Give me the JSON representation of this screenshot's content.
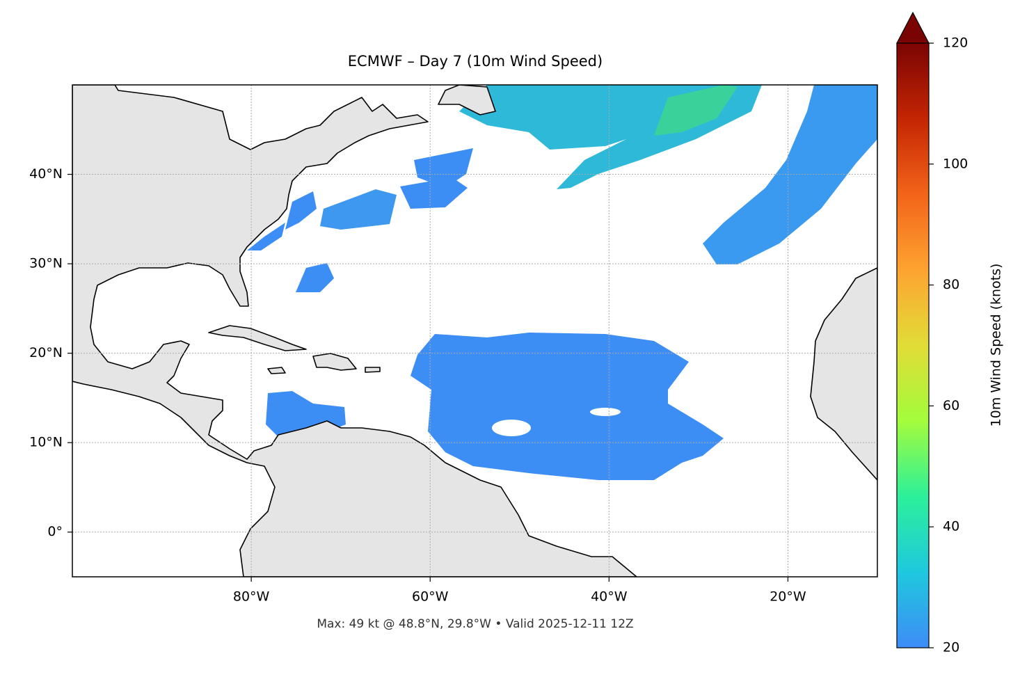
{
  "map": {
    "title": "ECMWF – Day 7 (10m Wind Speed)",
    "footer": "Max: 49 kt @ 48.8°N, 29.8°W • Valid 2025-12-11 12Z",
    "lonlim": [
      -100,
      -10
    ],
    "latlim": [
      -5,
      50
    ],
    "lon_ticks": [
      {
        "value": -80,
        "label": "80°W"
      },
      {
        "value": -60,
        "label": "60°W"
      },
      {
        "value": -40,
        "label": "40°W"
      },
      {
        "value": -20,
        "label": "20°W"
      }
    ],
    "lat_ticks": [
      {
        "value": 40,
        "label": "40°N"
      },
      {
        "value": 30,
        "label": "30°N"
      },
      {
        "value": 20,
        "label": "20°N"
      },
      {
        "value": 10,
        "label": "10°N"
      },
      {
        "value": 0,
        "label": "0°"
      }
    ],
    "grid": true,
    "colorbar": {
      "label": "10m Wind Speed (knots)",
      "lim": [
        20,
        120
      ],
      "ticks": [
        20,
        40,
        60,
        80,
        100,
        120
      ],
      "colors": [
        "#3e8cf7",
        "#1fc8de",
        "#2cf09a",
        "#a3fc3c",
        "#e1dd37",
        "#fea331",
        "#f26419",
        "#c42503",
        "#7a0403"
      ]
    }
  }
}
